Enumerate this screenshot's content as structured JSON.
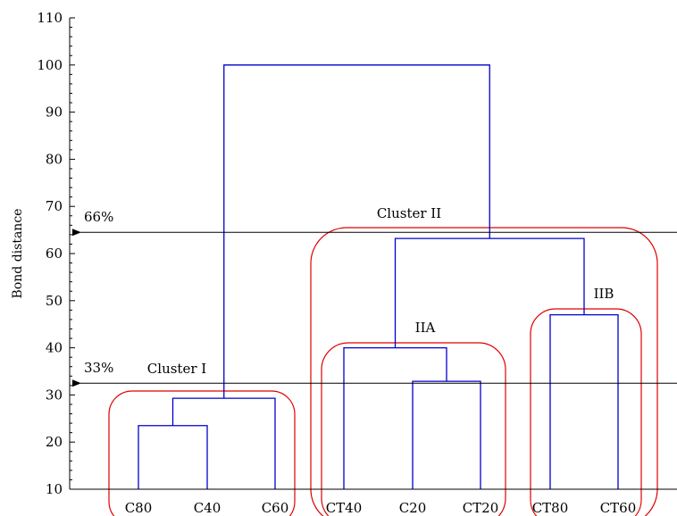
{
  "chart_data": {
    "type": "dendrogram",
    "ylabel": "Bond distance",
    "ylim": [
      10,
      110
    ],
    "yticks": [
      10,
      20,
      30,
      40,
      50,
      60,
      70,
      80,
      90,
      100,
      110
    ],
    "grid": false,
    "leaves": [
      "C80",
      "C40",
      "C60",
      "CT40",
      "C20",
      "CT20",
      "CT80",
      "CT60"
    ],
    "merges": [
      {
        "left": "C80",
        "right": "C40",
        "height": 23.5
      },
      {
        "left": "C80+C40",
        "right": "C60",
        "height": 29.3
      },
      {
        "left": "C20",
        "right": "CT20",
        "height": 32.9
      },
      {
        "left": "CT40",
        "right": "C20+CT20",
        "height": 40.0
      },
      {
        "left": "CT80",
        "right": "CT60",
        "height": 47.0
      },
      {
        "left": "CT40+C20+CT20",
        "right": "CT80+CT60",
        "height": 63.2
      },
      {
        "left": "C80+C40+C60",
        "right": "CT40+C20+CT20+CT80+CT60",
        "height": 100
      }
    ],
    "cut_lines": [
      {
        "label": "66%",
        "value": 64.5
      },
      {
        "label": "33%",
        "value": 32.5
      }
    ],
    "clusters": [
      {
        "label": "Cluster I",
        "members": [
          "C80",
          "C40",
          "C60"
        ]
      },
      {
        "label": "Cluster II",
        "members": [
          "CT40",
          "C20",
          "CT20",
          "CT80",
          "CT60"
        ]
      },
      {
        "label": "IIA",
        "members": [
          "CT40",
          "C20",
          "CT20"
        ]
      },
      {
        "label": "IIB",
        "members": [
          "CT80",
          "CT60"
        ]
      }
    ],
    "colors": {
      "tree": "#0000cc",
      "cluster_outline": "#e00000",
      "axis": "#000000"
    }
  }
}
